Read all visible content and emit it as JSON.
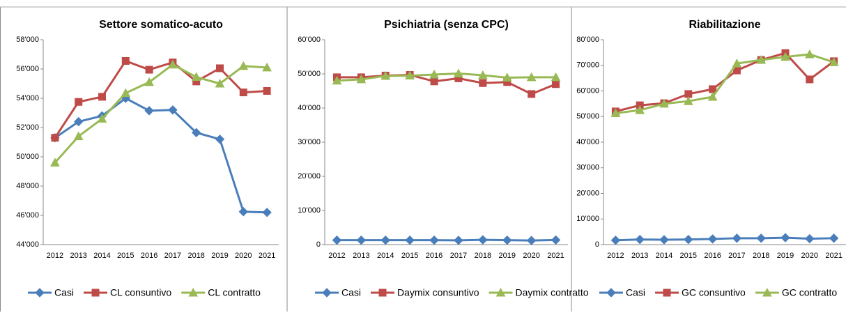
{
  "chart_data": [
    {
      "type": "line",
      "title": "Settore somatico-acuto",
      "categories": [
        "2012",
        "2013",
        "2014",
        "2015",
        "2016",
        "2017",
        "2018",
        "2019",
        "2020",
        "2021"
      ],
      "ylim": [
        44000,
        58000
      ],
      "yticks": [
        {
          "value": 44000,
          "label": "44'000"
        },
        {
          "value": 46000,
          "label": "46'000"
        },
        {
          "value": 48000,
          "label": "48'000"
        },
        {
          "value": 50000,
          "label": "50'000"
        },
        {
          "value": 52000,
          "label": "52'000"
        },
        {
          "value": 54000,
          "label": "54'000"
        },
        {
          "value": 56000,
          "label": "56'000"
        },
        {
          "value": 58000,
          "label": "58'000"
        }
      ],
      "series": [
        {
          "name": "Casi",
          "color": "#4a7ebb",
          "marker": "diamond",
          "values": [
            51300,
            52400,
            52800,
            54000,
            53150,
            53200,
            51650,
            51200,
            46250,
            46200
          ]
        },
        {
          "name": "CL consuntivo",
          "color": "#be4b48",
          "marker": "square",
          "values": [
            51300,
            53750,
            54100,
            56550,
            55950,
            56450,
            55150,
            56050,
            54400,
            54500
          ]
        },
        {
          "name": "CL contratto",
          "color": "#98b954",
          "marker": "triangle",
          "values": [
            49600,
            51400,
            52600,
            54350,
            55100,
            56300,
            55450,
            55000,
            56200,
            56100
          ]
        }
      ]
    },
    {
      "type": "line",
      "title": "Psichiatria (senza CPC)",
      "categories": [
        "2012",
        "2013",
        "2014",
        "2015",
        "2016",
        "2017",
        "2018",
        "2019",
        "2020",
        "2021"
      ],
      "ylim": [
        0,
        60000
      ],
      "yticks": [
        0,
        {
          "value": 10000,
          "label": "10'000"
        },
        {
          "value": 20000,
          "label": "20'000"
        },
        {
          "value": 30000,
          "label": "30'000"
        },
        {
          "value": 40000,
          "label": "40'000"
        },
        {
          "value": 50000,
          "label": "50'000"
        },
        {
          "value": 60000,
          "label": "60'000"
        }
      ],
      "series": [
        {
          "name": "Casi",
          "color": "#4a7ebb",
          "marker": "diamond",
          "values": [
            1300,
            1300,
            1300,
            1300,
            1300,
            1250,
            1400,
            1300,
            1200,
            1350
          ]
        },
        {
          "name": "Daymix consuntivo",
          "color": "#be4b48",
          "marker": "square",
          "values": [
            49000,
            49000,
            49500,
            49700,
            47800,
            48700,
            47300,
            47600,
            44100,
            47000
          ]
        },
        {
          "name": "Daymix contratto",
          "color": "#98b954",
          "marker": "triangle",
          "values": [
            48000,
            48400,
            49400,
            49500,
            49800,
            50100,
            49600,
            48900,
            49000,
            49000
          ]
        }
      ]
    },
    {
      "type": "line",
      "title": "Riabilitazione",
      "categories": [
        "2012",
        "2013",
        "2014",
        "2015",
        "2016",
        "2017",
        "2018",
        "2019",
        "2020",
        "2021"
      ],
      "ylim": [
        0,
        80000
      ],
      "yticks": [
        0,
        {
          "value": 10000,
          "label": "10'000"
        },
        {
          "value": 20000,
          "label": "20'000"
        },
        {
          "value": 30000,
          "label": "30'000"
        },
        {
          "value": 40000,
          "label": "40'000"
        },
        {
          "value": 50000,
          "label": "50'000"
        },
        {
          "value": 60000,
          "label": "60'000"
        },
        {
          "value": 70000,
          "label": "70'000"
        },
        {
          "value": 80000,
          "label": "80'000"
        }
      ],
      "series": [
        {
          "name": "Casi",
          "color": "#4a7ebb",
          "marker": "diamond",
          "values": [
            1700,
            2000,
            1900,
            2000,
            2200,
            2500,
            2500,
            2700,
            2300,
            2500
          ]
        },
        {
          "name": "GC consuntivo",
          "color": "#be4b48",
          "marker": "square",
          "values": [
            52000,
            54400,
            55200,
            58800,
            60700,
            68000,
            72100,
            74800,
            64500,
            71600
          ]
        },
        {
          "name": "GC contratto",
          "color": "#98b954",
          "marker": "triangle",
          "values": [
            51300,
            52500,
            55000,
            56000,
            57700,
            70700,
            72100,
            73300,
            74300,
            71200
          ]
        }
      ]
    }
  ]
}
